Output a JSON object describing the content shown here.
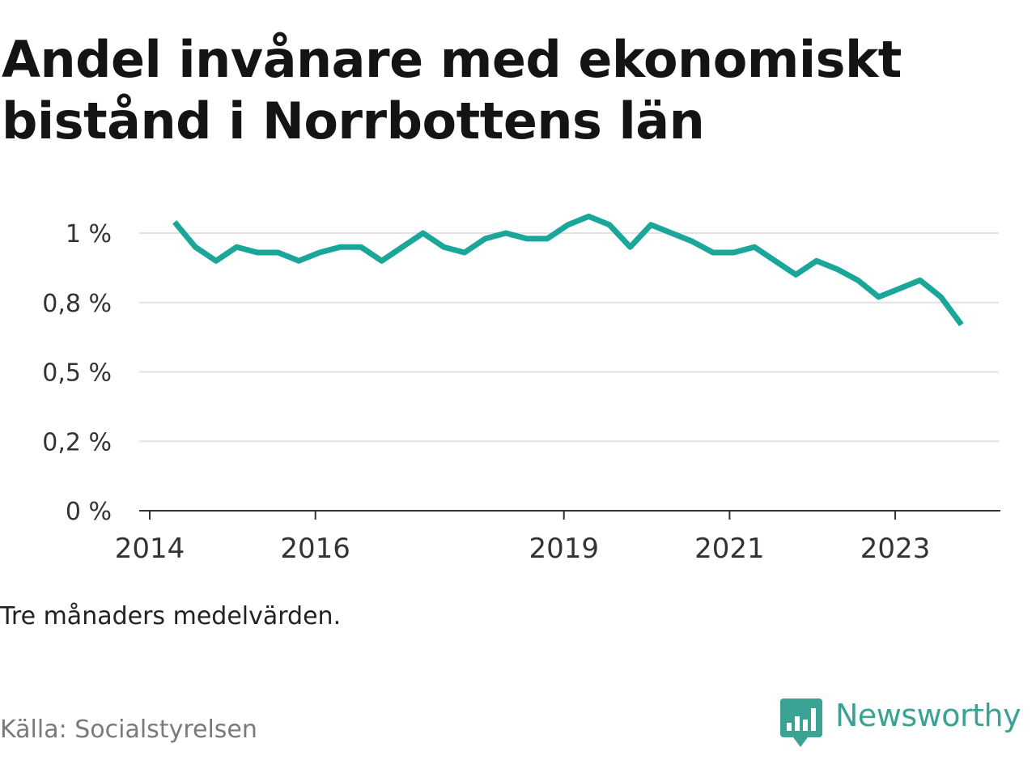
{
  "title": "Andel invånare med ekonomiskt bistånd i Norrbottens län",
  "note": "Tre månaders medelvärden.",
  "source": "Källa: Socialstyrelsen",
  "brand": {
    "name": "Newsworthy",
    "icon": "newsworthy-logo-icon"
  },
  "colors": {
    "line": "#1aa79a",
    "grid": "#e2e2e2",
    "axis": "#333333",
    "brand": "#3aa394"
  },
  "chart_data": {
    "type": "line",
    "title": "Andel invånare med ekonomiskt bistånd i Norrbottens län",
    "xlabel": "",
    "ylabel": "",
    "grid": true,
    "legend": "none",
    "y_ticks": [
      {
        "value": 0,
        "label": "0 %"
      },
      {
        "value": 0.25,
        "label": "0,2 %"
      },
      {
        "value": 0.5,
        "label": "0,5 %"
      },
      {
        "value": 0.75,
        "label": "0,8 %"
      },
      {
        "value": 1.0,
        "label": "1 %"
      }
    ],
    "x_ticks": [
      {
        "value": 2014.0,
        "label": "2014"
      },
      {
        "value": 2016.0,
        "label": "2016"
      },
      {
        "value": 2019.0,
        "label": "2019"
      },
      {
        "value": 2021.0,
        "label": "2021"
      },
      {
        "value": 2023.0,
        "label": "2023"
      }
    ],
    "xlim": [
      2014.0,
      2024.25
    ],
    "ylim": [
      0,
      1.1
    ],
    "x": [
      2014.3,
      2014.55,
      2014.8,
      2015.05,
      2015.3,
      2015.55,
      2015.8,
      2016.05,
      2016.3,
      2016.55,
      2016.8,
      2017.05,
      2017.3,
      2017.55,
      2017.8,
      2018.05,
      2018.3,
      2018.55,
      2018.8,
      2019.05,
      2019.3,
      2019.55,
      2019.8,
      2020.05,
      2020.3,
      2020.55,
      2020.8,
      2021.05,
      2021.3,
      2021.55,
      2021.8,
      2022.05,
      2022.3,
      2022.55,
      2022.8,
      2023.05,
      2023.3,
      2023.55,
      2023.8
    ],
    "series": [
      {
        "values": [
          1.04,
          0.95,
          0.9,
          0.95,
          0.93,
          0.93,
          0.9,
          0.93,
          0.95,
          0.95,
          0.9,
          0.95,
          1.0,
          0.95,
          0.93,
          0.98,
          1.0,
          0.98,
          0.98,
          1.03,
          1.06,
          1.03,
          0.95,
          1.03,
          1.0,
          0.97,
          0.93,
          0.93,
          0.95,
          0.9,
          0.85,
          0.9,
          0.87,
          0.83,
          0.77,
          0.8,
          0.83,
          0.77,
          0.67
        ]
      }
    ]
  }
}
